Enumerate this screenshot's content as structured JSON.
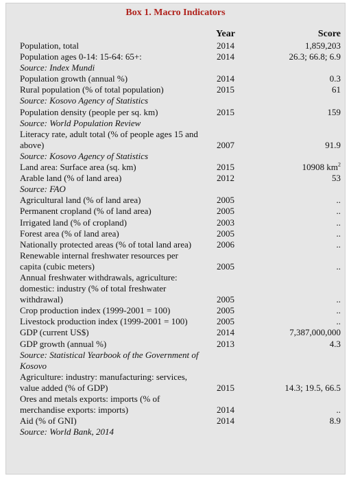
{
  "title": "Box 1. Macro Indicators",
  "columns": {
    "year": "Year",
    "score": "Score"
  },
  "rows": [
    {
      "indicator": "Population, total",
      "year": "2014",
      "score": "1,859,203"
    },
    {
      "indicator": "Population ages 0-14: 15-64: 65+:",
      "year": "2014",
      "score": "26.3;  66.8; 6.9"
    },
    {
      "source": "Source: Index Mundi"
    },
    {
      "indicator": "Population growth (annual %)",
      "year": "2014",
      "score": "0.3"
    },
    {
      "indicator": "Rural population (% of total population)",
      "year": "2015",
      "score": "61"
    },
    {
      "source": "Source: Kosovo Agency of Statistics"
    },
    {
      "indicator": "Population density (people per sq. km)",
      "year": "2015",
      "score": "159"
    },
    {
      "source": "Source: World Population Review"
    },
    {
      "indicator": "Literacy rate, adult total (% of people ages 15 and above)",
      "year": "2007",
      "score": "91.9"
    },
    {
      "source": "Source: Kosovo Agency of Statistics"
    },
    {
      "indicator": "Land area: Surface area (sq. km)",
      "year": "2015",
      "score": "10908 km",
      "score_sup": "2"
    },
    {
      "indicator": "Arable land (% of land area)",
      "year": "2012",
      "score": "53"
    },
    {
      "source": "Source: FAO"
    },
    {
      "indicator": "Agricultural land (% of land area)",
      "year": "2005",
      "score": ".."
    },
    {
      "indicator": "Permanent cropland (% of land area)",
      "year": "2005",
      "score": ".."
    },
    {
      "indicator": "Irrigated land (% of cropland)",
      "year": "2003",
      "score": ".."
    },
    {
      "indicator": "Forest area (% of land area)",
      "year": "2005",
      "score": ".."
    },
    {
      "indicator": "Nationally protected areas (% of total land area)",
      "year": "2006",
      "score": ".."
    },
    {
      "indicator": "Renewable internal freshwater resources per capita (cubic meters)",
      "year": "2005",
      "score": ".."
    },
    {
      "indicator": "Annual freshwater withdrawals, agriculture: domestic: industry (% of total freshwater withdrawal)",
      "year": "2005",
      "score": ".."
    },
    {
      "indicator": "Crop production index (1999-2001 = 100)",
      "year": "2005",
      "score": ".."
    },
    {
      "indicator": "Livestock production index (1999-2001 = 100)",
      "year": "2005",
      "score": ".."
    },
    {
      "indicator": "GDP (current US$)",
      "year": "2014",
      "score": "7,387,000,000"
    },
    {
      "indicator": "GDP growth (annual %)",
      "year": "2013",
      "score": "4.3"
    },
    {
      "source": "Source: Statistical Yearbook of the Government of Kosovo"
    },
    {
      "indicator": "Agriculture: industry: manufacturing: services, value added (% of GDP)",
      "year": "2015",
      "score": "14.3; 19.5, 66.5"
    },
    {
      "indicator": "Ores and metals exports: imports (% of merchandise exports: imports)",
      "year": "2014",
      "score": ".."
    },
    {
      "indicator": "Aid (% of GNI)",
      "year": "2014",
      "score": "8.9"
    },
    {
      "source": "Source: World Bank, 2014"
    }
  ]
}
